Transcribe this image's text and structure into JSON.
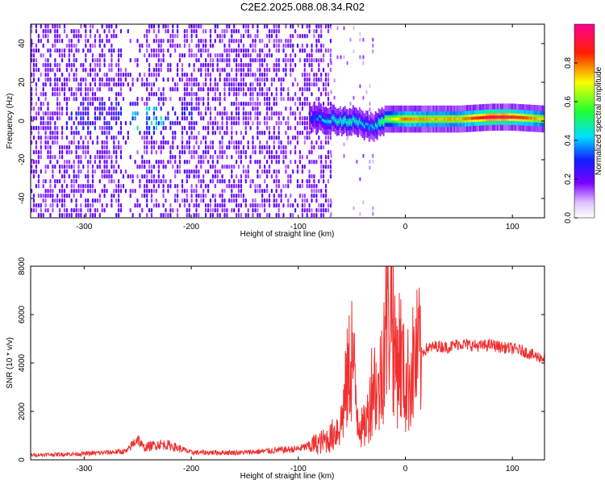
{
  "title": "C2E2.2025.088.08.34.R02",
  "colors": {
    "spectrogram_low": "#7a00ff",
    "spectrogram_mid": "#00e0ff",
    "spectrogram_high": "#ff0000",
    "snr_line": "#f03030",
    "background": "#ffffff"
  },
  "chart_data": [
    {
      "type": "heatmap",
      "title": "C2E2.2025.088.08.34.R02",
      "xlabel": "Height of straight line (km)",
      "ylabel": "Frequency (Hz)",
      "xlim": [
        -350,
        130
      ],
      "ylim": [
        -50,
        50
      ],
      "x_ticks": [
        -300,
        -200,
        -100,
        0,
        100
      ],
      "y_ticks": [
        -40,
        -20,
        0,
        20,
        40
      ],
      "colorbar": {
        "label": "Normalized spectral amplitude",
        "range": [
          0,
          1
        ],
        "ticks": [
          "0.0",
          "0.2",
          "0.4",
          "0.6",
          "0.8"
        ],
        "colormap": "rainbow (violet-blue-cyan-green-yellow-red-magenta)"
      },
      "features": {
        "noise_region_x": [
          -350,
          -70
        ],
        "sparse_noise_region_x": [
          -70,
          -30
        ],
        "signal_track": {
          "description": "narrow band near 0 Hz",
          "x": [
            -90,
            -70,
            -50,
            -40,
            -30,
            -20,
            0,
            20,
            50,
            80,
            100,
            130
          ],
          "frequency_hz": [
            2,
            1,
            0,
            -2,
            -3,
            1,
            1,
            1,
            1,
            2,
            2,
            1
          ],
          "amplitude": [
            0.3,
            0.45,
            0.5,
            0.4,
            0.4,
            0.6,
            0.8,
            0.75,
            0.75,
            0.95,
            0.9,
            0.7
          ]
        }
      },
      "grid": false
    },
    {
      "type": "line",
      "xlabel": "Height of straight line (km)",
      "ylabel": "SNR (10 * v/v)",
      "xlim": [
        -350,
        130
      ],
      "ylim": [
        0,
        8000
      ],
      "x_ticks": [
        -300,
        -200,
        -100,
        0,
        100
      ],
      "y_ticks": [
        0,
        2000,
        4000,
        6000,
        8000
      ],
      "series": [
        {
          "x": [
            -350,
            -300,
            -260,
            -250,
            -245,
            -230,
            -220,
            -200,
            -150,
            -100,
            -80,
            -70,
            -60,
            -55,
            -50,
            -45,
            -40,
            -35,
            -30,
            -25,
            -20,
            -15,
            -13,
            -10,
            -5,
            0,
            10,
            20,
            30,
            40,
            50,
            60,
            70,
            80,
            90,
            100,
            110,
            120,
            130
          ],
          "y": [
            200,
            250,
            350,
            900,
            500,
            650,
            600,
            300,
            300,
            450,
            700,
            900,
            1500,
            3000,
            4500,
            2000,
            1200,
            1800,
            3500,
            2500,
            5000,
            6800,
            8000,
            4000,
            4500,
            3000,
            4200,
            4600,
            4700,
            4650,
            4800,
            4750,
            4700,
            4750,
            4650,
            4600,
            4500,
            4300,
            4200
          ]
        }
      ],
      "grid": false
    }
  ]
}
